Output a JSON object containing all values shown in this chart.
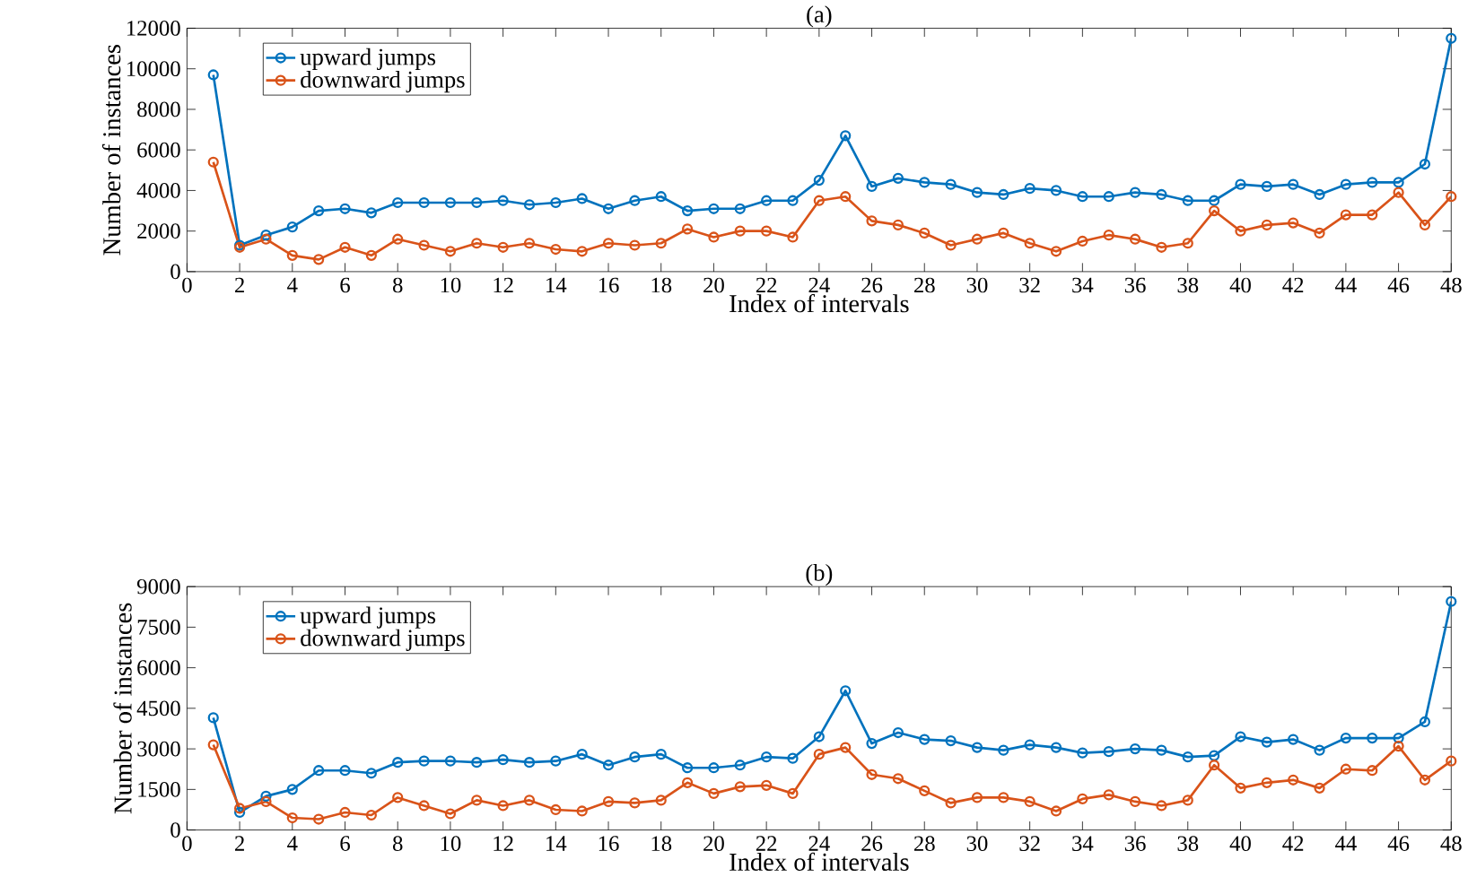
{
  "chart_data": [
    {
      "type": "line",
      "title": "(a)",
      "xlabel": "Index of intervals",
      "ylabel": "Number of instances",
      "xlim": [
        0,
        48
      ],
      "xticks": [
        0,
        2,
        4,
        6,
        8,
        10,
        12,
        14,
        16,
        18,
        20,
        22,
        24,
        26,
        28,
        30,
        32,
        34,
        36,
        38,
        40,
        42,
        44,
        46,
        48
      ],
      "ylim": [
        0,
        12000
      ],
      "yticks": [
        0,
        2000,
        4000,
        6000,
        8000,
        10000,
        12000
      ],
      "legend": "top left",
      "marker": "circle",
      "x": [
        1,
        2,
        3,
        4,
        5,
        6,
        7,
        8,
        9,
        10,
        11,
        12,
        13,
        14,
        15,
        16,
        17,
        18,
        19,
        20,
        21,
        22,
        23,
        24,
        25,
        26,
        27,
        28,
        29,
        30,
        31,
        32,
        33,
        34,
        35,
        36,
        37,
        38,
        39,
        40,
        41,
        42,
        43,
        44,
        45,
        46,
        47,
        48
      ],
      "series": [
        {
          "name": "upward jumps",
          "color": "#0072bd",
          "values": [
            9700,
            1300,
            1800,
            2200,
            3000,
            3100,
            2900,
            3400,
            3400,
            3400,
            3400,
            3500,
            3300,
            3400,
            3600,
            3100,
            3500,
            3700,
            3000,
            3100,
            3100,
            3500,
            3500,
            4500,
            6700,
            4200,
            4600,
            4400,
            4300,
            3900,
            3800,
            4100,
            4000,
            3700,
            3700,
            3900,
            3800,
            3500,
            3500,
            4300,
            4200,
            4300,
            3800,
            4300,
            4400,
            4400,
            5300,
            11500
          ]
        },
        {
          "name": "downward jumps",
          "color": "#d95319",
          "values": [
            5400,
            1200,
            1600,
            800,
            600,
            1200,
            800,
            1600,
            1300,
            1000,
            1400,
            1200,
            1400,
            1100,
            1000,
            1400,
            1300,
            1400,
            2100,
            1700,
            2000,
            2000,
            1700,
            3500,
            3700,
            2500,
            2300,
            1900,
            1300,
            1600,
            1900,
            1400,
            1000,
            1500,
            1800,
            1600,
            1200,
            1400,
            3000,
            2000,
            2300,
            2400,
            1900,
            2800,
            2800,
            3900,
            2300,
            3700
          ]
        }
      ]
    },
    {
      "type": "line",
      "title": "(b)",
      "xlabel": "Index of intervals",
      "ylabel": "Number of instances",
      "xlim": [
        0,
        48
      ],
      "xticks": [
        0,
        2,
        4,
        6,
        8,
        10,
        12,
        14,
        16,
        18,
        20,
        22,
        24,
        26,
        28,
        30,
        32,
        34,
        36,
        38,
        40,
        42,
        44,
        46,
        48
      ],
      "ylim": [
        0,
        9000
      ],
      "yticks": [
        0,
        1500,
        3000,
        4500,
        6000,
        7500,
        9000
      ],
      "legend": "top left",
      "marker": "circle",
      "x": [
        1,
        2,
        3,
        4,
        5,
        6,
        7,
        8,
        9,
        10,
        11,
        12,
        13,
        14,
        15,
        16,
        17,
        18,
        19,
        20,
        21,
        22,
        23,
        24,
        25,
        26,
        27,
        28,
        29,
        30,
        31,
        32,
        33,
        34,
        35,
        36,
        37,
        38,
        39,
        40,
        41,
        42,
        43,
        44,
        45,
        46,
        47,
        48
      ],
      "series": [
        {
          "name": "upward jumps",
          "color": "#0072bd",
          "values": [
            4150,
            650,
            1250,
            1500,
            2200,
            2200,
            2100,
            2500,
            2550,
            2550,
            2500,
            2600,
            2500,
            2550,
            2800,
            2400,
            2700,
            2800,
            2300,
            2300,
            2400,
            2700,
            2650,
            3450,
            5150,
            3200,
            3600,
            3350,
            3300,
            3050,
            2950,
            3150,
            3050,
            2850,
            2900,
            3000,
            2950,
            2700,
            2750,
            3450,
            3250,
            3350,
            2950,
            3400,
            3400,
            3400,
            4000,
            8450
          ]
        },
        {
          "name": "downward jumps",
          "color": "#d95319",
          "values": [
            3150,
            800,
            1050,
            450,
            400,
            650,
            550,
            1200,
            900,
            600,
            1100,
            900,
            1100,
            750,
            700,
            1050,
            1000,
            1100,
            1750,
            1350,
            1600,
            1650,
            1350,
            2800,
            3050,
            2050,
            1900,
            1450,
            1000,
            1200,
            1200,
            1050,
            700,
            1150,
            1300,
            1050,
            900,
            1100,
            2400,
            1550,
            1750,
            1850,
            1550,
            2250,
            2200,
            3100,
            1850,
            2550
          ]
        }
      ]
    }
  ]
}
